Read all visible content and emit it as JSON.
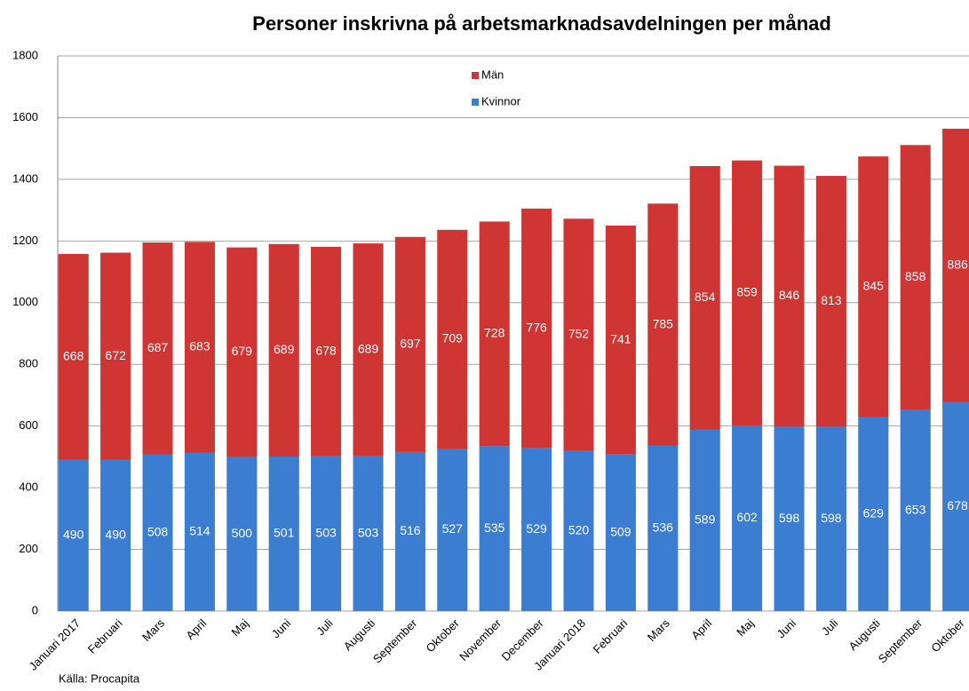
{
  "chart_data": {
    "type": "stacked_bar",
    "title": "Personer inskrivna på arbetsmarknadsavdelningen per månad",
    "source": "Källa: Procapita",
    "categories": [
      "Januari 2017",
      "Februari",
      "Mars",
      "April",
      "Maj",
      "Juni",
      "Juli",
      "Augusti",
      "September",
      "Oktober",
      "November",
      "December",
      "Januari 2018",
      "Februari",
      "Mars",
      "April",
      "Maj",
      "Juni",
      "Juli",
      "Augusti",
      "September",
      "Oktober"
    ],
    "series": [
      {
        "name": "Kvinnor",
        "color": "#3b7dd0",
        "values": [
          490,
          490,
          508,
          514,
          500,
          501,
          503,
          503,
          516,
          527,
          535,
          529,
          520,
          509,
          536,
          589,
          602,
          598,
          598,
          629,
          653,
          678
        ]
      },
      {
        "name": "Män",
        "color": "#cf3533",
        "values": [
          668,
          672,
          687,
          683,
          679,
          689,
          678,
          689,
          697,
          709,
          728,
          776,
          752,
          741,
          785,
          854,
          859,
          846,
          813,
          845,
          858,
          886
        ]
      }
    ],
    "ylim": [
      0,
      1800
    ],
    "yticks": [
      0,
      200,
      400,
      600,
      800,
      1000,
      1200,
      1400,
      1600,
      1800
    ],
    "grid": true,
    "legend": "top"
  }
}
